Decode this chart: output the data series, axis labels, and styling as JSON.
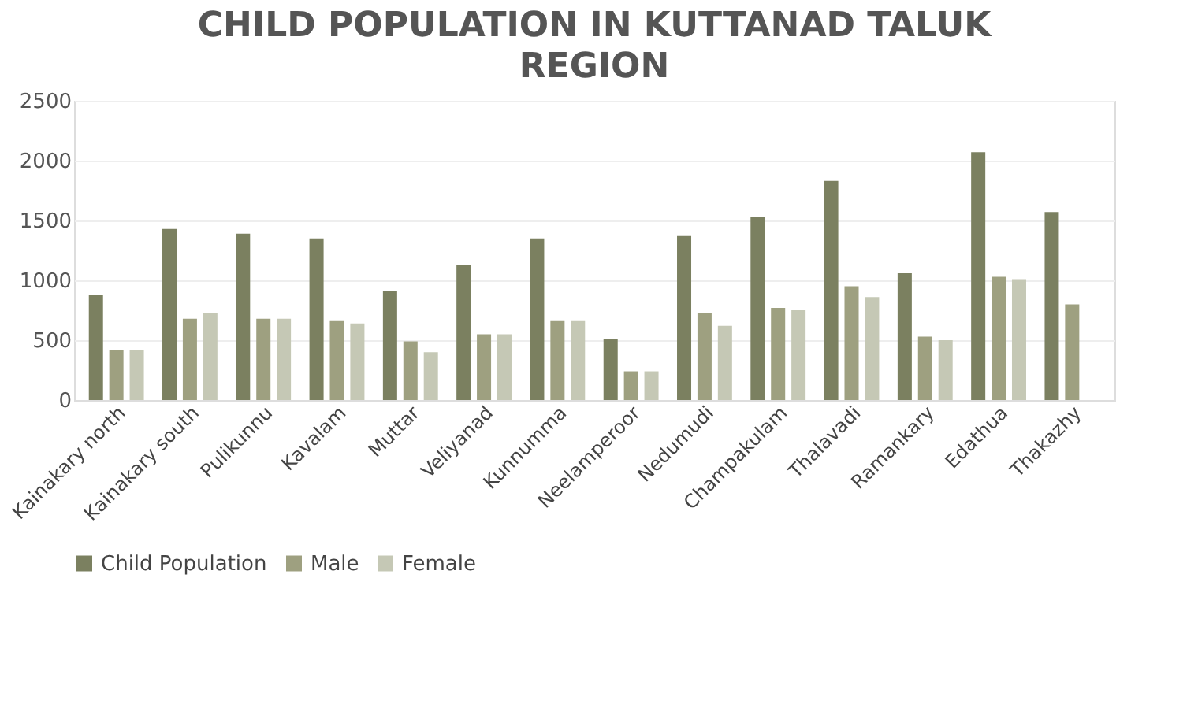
{
  "chart_data": {
    "type": "bar",
    "title": "CHILD POPULATION IN KUTTANAD TALUK REGION",
    "categories": [
      "Kainakary north",
      "Kainakary south",
      "Pulikunnu",
      "Kavalam",
      "Muttar",
      "Veliyanad",
      "Kunnumma",
      "Neelamperoor",
      "Nedumudi",
      "Champakulam",
      "Thalavadi",
      "Ramankary",
      "Edathua",
      "Thakazhy"
    ],
    "series": [
      {
        "name": "Child Population",
        "color": "#7b8060",
        "values": [
          880,
          1430,
          1390,
          1350,
          910,
          1130,
          1350,
          510,
          1370,
          1530,
          1830,
          1060,
          2070,
          1570
        ]
      },
      {
        "name": "Male",
        "color": "#9ea080",
        "values": [
          420,
          680,
          680,
          660,
          490,
          550,
          660,
          240,
          730,
          770,
          950,
          530,
          1030,
          800
        ]
      },
      {
        "name": "Female",
        "color": "#c5c8b5",
        "values": [
          420,
          730,
          680,
          640,
          400,
          550,
          660,
          240,
          620,
          750,
          860,
          500,
          1010,
          null
        ]
      }
    ],
    "ylim": [
      0,
      2500
    ],
    "yticks": [
      0,
      500,
      1000,
      1500,
      2000,
      2500
    ],
    "grid": "y",
    "legend": "bottom"
  }
}
